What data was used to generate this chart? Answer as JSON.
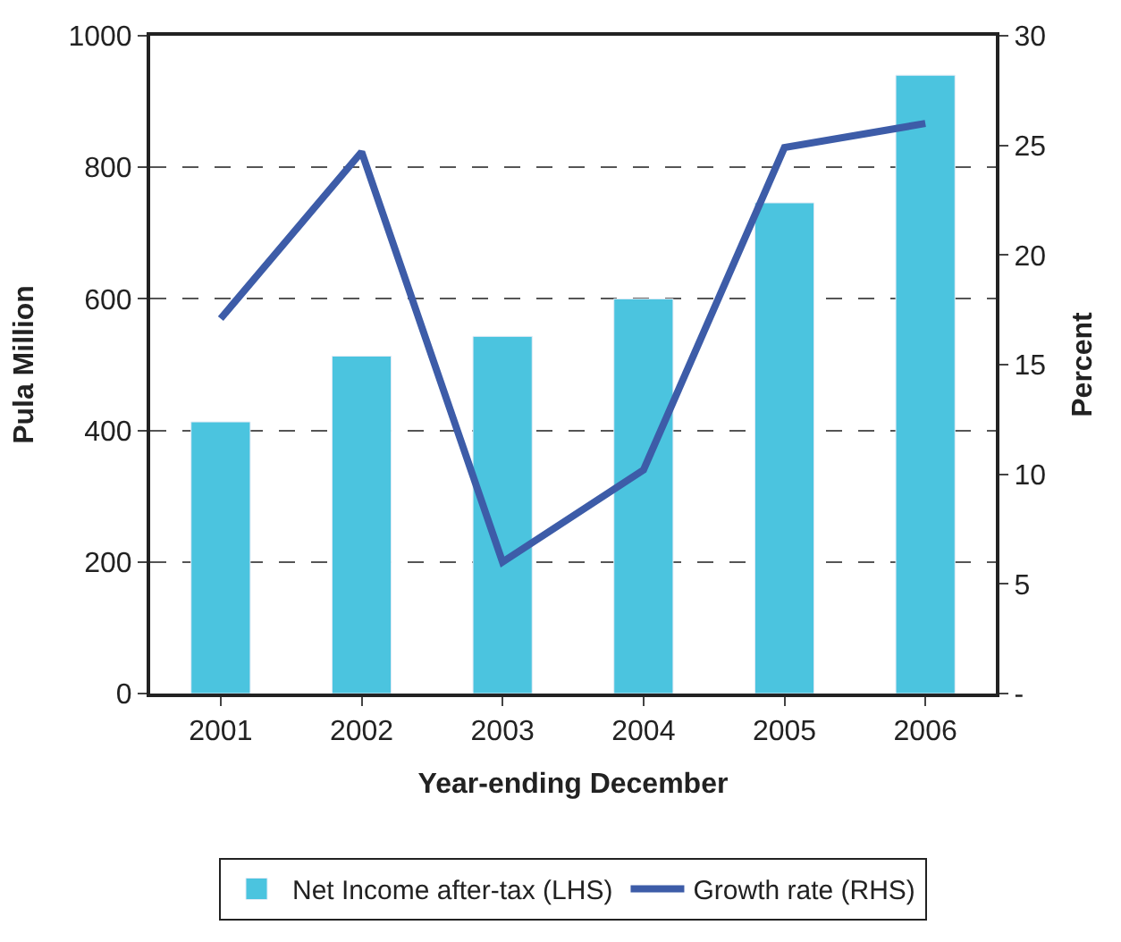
{
  "chart_data": {
    "type": "bar",
    "xlabel": "Year-ending December",
    "ylabel": "Pula Million",
    "y2label": "Percent",
    "categories": [
      "2001",
      "2002",
      "2003",
      "2004",
      "2005",
      "2006"
    ],
    "series": [
      {
        "name": "Net Income after-tax (LHS)",
        "color": "#4bc4df",
        "values": [
          413,
          513,
          543,
          600,
          746,
          940
        ]
      },
      {
        "name": "Growth rate (RHS)",
        "color": "#3d5ca8",
        "type": "line",
        "axis": "y2",
        "values": [
          17.1,
          24.7,
          6.0,
          10.2,
          24.9,
          26.0
        ]
      }
    ],
    "ylim": [
      0,
      1000
    ],
    "yticks": [
      0,
      200,
      400,
      600,
      800,
      1000
    ],
    "y2lim": [
      0,
      30
    ],
    "y2ticks": [
      {
        "value": 0,
        "label": "-"
      },
      5,
      10,
      15,
      20,
      25,
      30
    ],
    "grid": "y",
    "legend": "bottom",
    "marker": "none",
    "line_style": "solid"
  }
}
